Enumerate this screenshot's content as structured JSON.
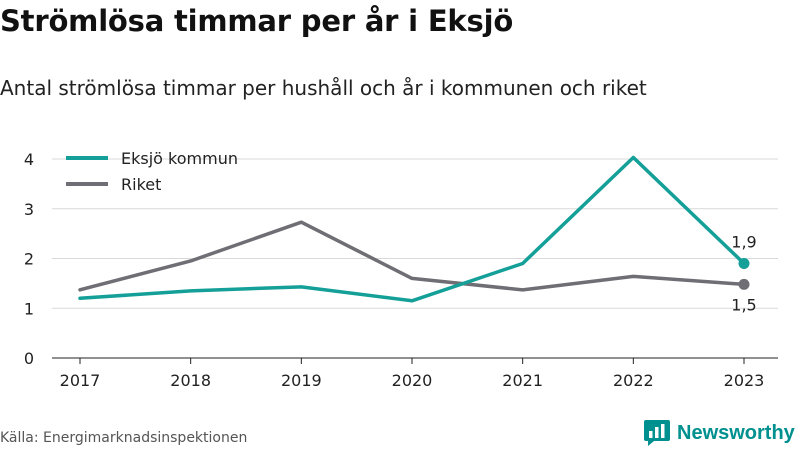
{
  "title": "Strömlösa timmar per år i Eksjö",
  "subtitle": "Antal strömlösa timmar per hushåll och år i kommunen och riket",
  "source": "Källa: Energimarknadsinspektionen",
  "brand": {
    "name": "Newsworthy",
    "color": "#00908f",
    "logo_icon": "newsworthy-chart-bubble-icon"
  },
  "chart_data": {
    "type": "line",
    "x": [
      "2017",
      "2018",
      "2019",
      "2020",
      "2021",
      "2022",
      "2023"
    ],
    "ylim": [
      0,
      4
    ],
    "yticks": [
      0,
      1,
      2,
      3,
      4
    ],
    "grid": true,
    "legend_position": "top-left",
    "series": [
      {
        "name": "Eksjö kommun",
        "color": "#14a098",
        "values": [
          1.2,
          1.35,
          1.43,
          1.15,
          1.9,
          4.03,
          1.9
        ],
        "end_label": "1,9"
      },
      {
        "name": "Riket",
        "color": "#6f6e74",
        "values": [
          1.37,
          1.95,
          2.73,
          1.6,
          1.37,
          1.64,
          1.48
        ],
        "end_label": "1,5"
      }
    ]
  }
}
